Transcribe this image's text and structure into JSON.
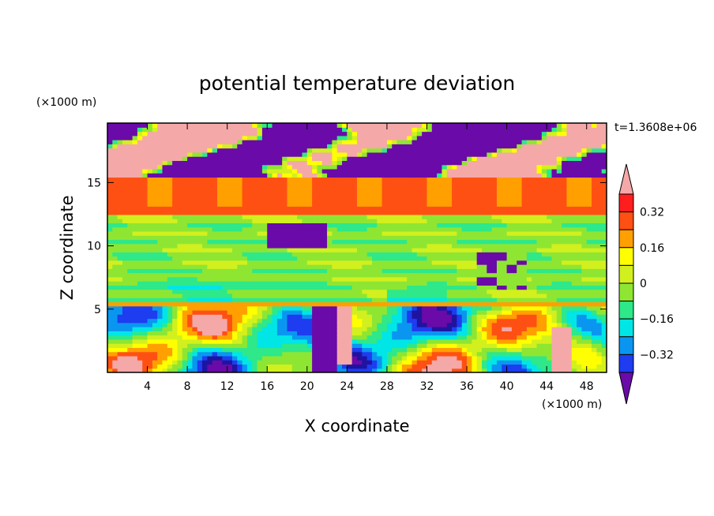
{
  "chart_data": {
    "type": "heatmap",
    "title": "potential temperature deviation",
    "xlabel": "X coordinate",
    "ylabel": "Z coordinate",
    "x_unit": "(×1000 m)",
    "y_unit": "(×1000 m)",
    "time_label": "t=1.3608e+06",
    "xlim": [
      0,
      50
    ],
    "ylim": [
      0,
      19.7
    ],
    "x_ticks": [
      4,
      8,
      12,
      16,
      20,
      24,
      28,
      32,
      36,
      40,
      44,
      48
    ],
    "y_ticks": [
      5,
      10,
      15
    ],
    "colorbar": {
      "levels": [
        -0.4,
        -0.32,
        -0.24,
        -0.16,
        -0.08,
        0,
        0.08,
        0.16,
        0.24,
        0.32,
        0.4
      ],
      "tick_labels": [
        "0.32",
        "0.16",
        "0",
        "−0.16",
        "−0.32"
      ],
      "tick_values": [
        0.32,
        0.16,
        0,
        -0.16,
        -0.32
      ],
      "colors": [
        "#6a0aa8",
        "#1e14a0",
        "#1e3cf0",
        "#0a96f0",
        "#00e6e6",
        "#2ee88a",
        "#8ee632",
        "#d2f01e",
        "#ffff00",
        "#ffa000",
        "#ff5014",
        "#ff1e1e",
        "#f5a8a8"
      ],
      "extend": "both"
    },
    "bands": [
      {
        "z_range": [
          15.5,
          19.7
        ],
        "pattern": "alternating strongly negative (-0.4) and strongly positive (0.4) patches"
      },
      {
        "z_range": [
          13.0,
          15.5
        ],
        "value": 0.3
      },
      {
        "z_range": [
          12.6,
          13.0
        ],
        "value": 0.36
      },
      {
        "z_range": [
          5.5,
          12.6
        ],
        "value": 0.04
      },
      {
        "z_range": [
          5.2,
          5.5
        ],
        "value": 0.3
      },
      {
        "z_range": [
          0,
          5.2
        ],
        "pattern": "mixed turbulent cells from -0.4 to 0.4"
      }
    ]
  }
}
